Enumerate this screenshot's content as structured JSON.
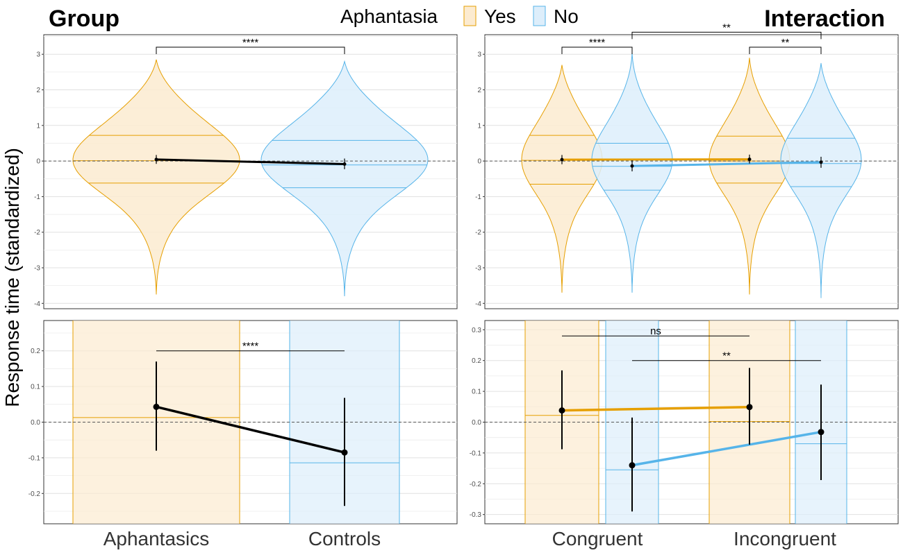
{
  "figure": {
    "ylabel": "Response time (standardized)",
    "titles": {
      "left": "Group",
      "right": "Interaction"
    }
  },
  "legend": {
    "title": "Aphantasia",
    "entries": [
      {
        "label": "Yes",
        "color": "#E69F00",
        "fill": "#FCEBD0"
      },
      {
        "label": "No",
        "color": "#56B4E9",
        "fill": "#DDEEFB"
      }
    ]
  },
  "chart_data": [
    {
      "id": "group-full",
      "type": "violin",
      "categories": [
        "Aphantasics",
        "Controls"
      ],
      "ylim": [
        -4.15,
        3.55
      ],
      "yticks": [
        -4,
        -3,
        -2,
        -1,
        0,
        1,
        2,
        3
      ],
      "series": [
        {
          "group": "Yes",
          "category": "Aphantasics",
          "mean": 0.043,
          "ci": [
            -0.08,
            0.17
          ],
          "quartiles": [
            -0.62,
            0.01,
            0.72
          ],
          "range": [
            -3.75,
            2.85
          ]
        },
        {
          "group": "No",
          "category": "Controls",
          "mean": -0.085,
          "ci": [
            -0.23,
            0.07
          ],
          "quartiles": [
            -0.75,
            -0.11,
            0.58
          ],
          "range": [
            -3.8,
            2.8
          ]
        }
      ],
      "significance": [
        {
          "from": 0,
          "to": 1,
          "label": "****",
          "y": 3.2
        }
      ]
    },
    {
      "id": "interaction-full",
      "type": "violin",
      "categories": [
        "Congruent",
        "Incongruent"
      ],
      "ylim": [
        -4.15,
        3.55
      ],
      "yticks": [
        -4,
        -3,
        -2,
        -1,
        0,
        1,
        2,
        3
      ],
      "series": [
        {
          "group": "Yes",
          "category": "Congruent",
          "mean": 0.038,
          "ci": [
            -0.09,
            0.17
          ],
          "quartiles": [
            -0.65,
            0.02,
            0.72
          ],
          "range": [
            -3.7,
            2.7
          ]
        },
        {
          "group": "No",
          "category": "Congruent",
          "mean": -0.14,
          "ci": [
            -0.29,
            0.02
          ],
          "quartiles": [
            -0.82,
            -0.15,
            0.5
          ],
          "range": [
            -3.7,
            3.05
          ]
        },
        {
          "group": "Yes",
          "category": "Incongruent",
          "mean": 0.049,
          "ci": [
            -0.07,
            0.18
          ],
          "quartiles": [
            -0.62,
            0.0,
            0.7
          ],
          "range": [
            -3.75,
            2.9
          ]
        },
        {
          "group": "No",
          "category": "Incongruent",
          "mean": -0.032,
          "ci": [
            -0.19,
            0.12
          ],
          "quartiles": [
            -0.72,
            -0.07,
            0.64
          ],
          "range": [
            -3.85,
            2.75
          ]
        }
      ],
      "significance": [
        {
          "from": 0,
          "to": 1,
          "label": "****",
          "y": 3.2
        },
        {
          "from": 1,
          "to": 3,
          "label": "**",
          "y": 3.62
        },
        {
          "from": 2,
          "to": 3,
          "label": "**",
          "y": 3.2
        }
      ]
    },
    {
      "id": "group-zoom",
      "type": "violin",
      "categories": [
        "Aphantasics",
        "Controls"
      ],
      "ylim": [
        -0.285,
        0.285
      ],
      "yticks": [
        -0.2,
        -0.1,
        0.0,
        0.1,
        0.2
      ],
      "series": [
        {
          "group": "Yes",
          "category": "Aphantasics",
          "mean": 0.043,
          "ci": [
            -0.08,
            0.17
          ],
          "median": 0.013
        },
        {
          "group": "No",
          "category": "Controls",
          "mean": -0.085,
          "ci": [
            -0.235,
            0.068
          ],
          "median": -0.114
        }
      ],
      "significance": [
        {
          "from": 0,
          "to": 1,
          "label": "****",
          "y": 0.2
        }
      ]
    },
    {
      "id": "interaction-zoom",
      "type": "violin",
      "categories": [
        "Congruent",
        "Incongruent"
      ],
      "ylim": [
        -0.33,
        0.33
      ],
      "yticks": [
        -0.3,
        -0.2,
        -0.1,
        0.0,
        0.1,
        0.2,
        0.3
      ],
      "series": [
        {
          "group": "Yes",
          "category": "Congruent",
          "mean": 0.038,
          "ci": [
            -0.088,
            0.168
          ],
          "median": 0.022
        },
        {
          "group": "No",
          "category": "Congruent",
          "mean": -0.14,
          "ci": [
            -0.29,
            0.015
          ],
          "median": -0.155
        },
        {
          "group": "Yes",
          "category": "Incongruent",
          "mean": 0.049,
          "ci": [
            -0.073,
            0.176
          ],
          "median": 0.002
        },
        {
          "group": "No",
          "category": "Incongruent",
          "mean": -0.032,
          "ci": [
            -0.188,
            0.122
          ],
          "median": -0.07
        }
      ],
      "significance": [
        {
          "from": 0,
          "to": 2,
          "label": "ns",
          "y": 0.28
        },
        {
          "from": 1,
          "to": 3,
          "label": "**",
          "y": 0.2
        }
      ]
    }
  ]
}
